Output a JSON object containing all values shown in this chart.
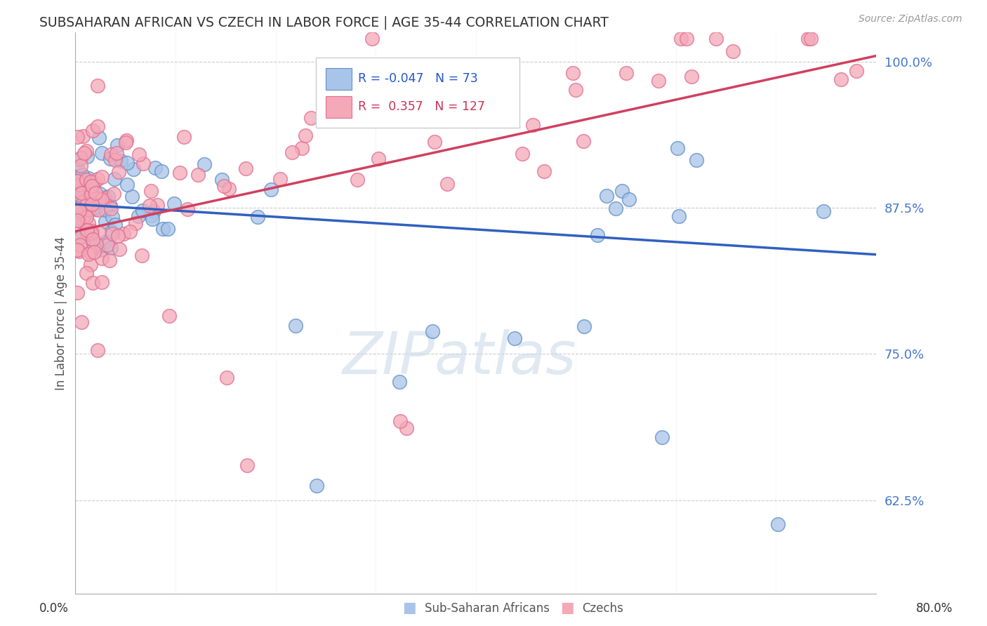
{
  "title": "SUBSAHARAN AFRICAN VS CZECH IN LABOR FORCE | AGE 35-44 CORRELATION CHART",
  "source": "Source: ZipAtlas.com",
  "ylabel": "In Labor Force | Age 35-44",
  "yticks": [
    0.625,
    0.75,
    0.875,
    1.0
  ],
  "ytick_labels": [
    "62.5%",
    "75.0%",
    "87.5%",
    "100.0%"
  ],
  "xlim": [
    0.0,
    0.8
  ],
  "ylim": [
    0.545,
    1.025
  ],
  "legend_blue_r": "-0.047",
  "legend_blue_n": "73",
  "legend_pink_r": "0.357",
  "legend_pink_n": "127",
  "blue_color": "#a8c4e8",
  "pink_color": "#f4a8b8",
  "blue_edge_color": "#6090c8",
  "pink_edge_color": "#e07090",
  "blue_line_color": "#3060c0",
  "pink_line_color": "#d04060",
  "watermark": "ZIPatlas",
  "blue_line_x0": 0.0,
  "blue_line_y0": 0.878,
  "blue_line_x1": 0.8,
  "blue_line_y1": 0.835,
  "pink_line_x0": 0.0,
  "pink_line_y0": 0.855,
  "pink_line_x1": 0.8,
  "pink_line_y1": 1.005
}
